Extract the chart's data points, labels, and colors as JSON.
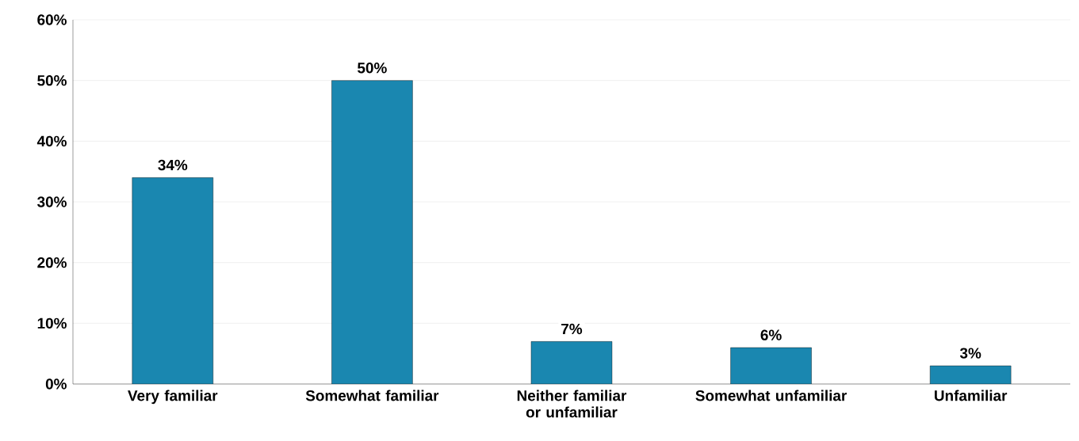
{
  "chart_data": {
    "type": "bar",
    "categories": [
      "Very familiar",
      "Somewhat familiar",
      "Neither familiar or unfamiliar",
      "Somewhat unfamiliar",
      "Unfamiliar"
    ],
    "values": [
      34,
      50,
      7,
      6,
      3
    ],
    "value_labels": [
      "34%",
      "50%",
      "7%",
      "6%",
      "3%"
    ],
    "color": "#1a87b0",
    "ylim": [
      0,
      60
    ],
    "yticks": [
      {
        "value": 0,
        "label": "0%"
      },
      {
        "value": 10,
        "label": "10%"
      },
      {
        "value": 20,
        "label": "20%"
      },
      {
        "value": 30,
        "label": "30%"
      },
      {
        "value": 40,
        "label": "40%"
      },
      {
        "value": 50,
        "label": "50%"
      },
      {
        "value": 60,
        "label": "60%"
      }
    ],
    "grid": true
  }
}
